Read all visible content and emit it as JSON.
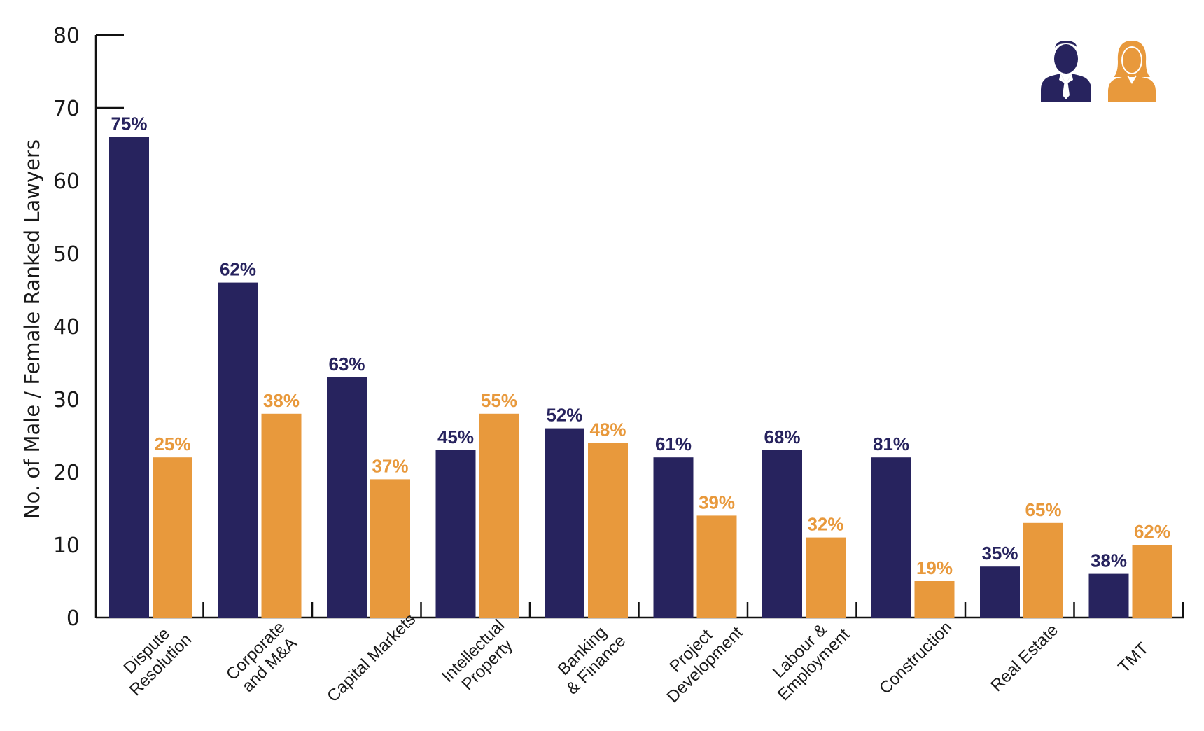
{
  "chart_data": {
    "type": "bar",
    "ylabel": "No. of Male / Female Ranked Lawyers",
    "xlabel": "",
    "ylim": [
      0,
      80
    ],
    "yticks": [
      0,
      10,
      20,
      30,
      40,
      50,
      60,
      70,
      80
    ],
    "grid": false,
    "legend": "top-right icons (male figure, female figure)",
    "categories": [
      [
        "Dispute",
        "Resolution"
      ],
      [
        "Corporate",
        "and M&A"
      ],
      [
        "Capital Markets"
      ],
      [
        "Intellectual",
        "Property"
      ],
      [
        "Banking",
        "& Finance"
      ],
      [
        "Project",
        "Development"
      ],
      [
        "Labour &",
        "Employment"
      ],
      [
        "Construction"
      ],
      [
        "Real Estate"
      ],
      [
        "TMT"
      ]
    ],
    "series": [
      {
        "color": "#27235e",
        "values": [
          66,
          46,
          33,
          23,
          26,
          22,
          23,
          22,
          7,
          6
        ],
        "labels": [
          "75%",
          "62%",
          "63%",
          "45%",
          "52%",
          "61%",
          "68%",
          "81%",
          "35%",
          "38%"
        ]
      },
      {
        "color": "#e8993c",
        "values": [
          22,
          28,
          19,
          28,
          24,
          14,
          11,
          5,
          13,
          10
        ],
        "labels": [
          "25%",
          "38%",
          "37%",
          "55%",
          "48%",
          "39%",
          "32%",
          "19%",
          "65%",
          "62%"
        ]
      }
    ],
    "legend_icons": [
      {
        "icon": "male-person-icon",
        "color": "#27235e"
      },
      {
        "icon": "female-person-icon",
        "color": "#e8993c"
      }
    ]
  }
}
